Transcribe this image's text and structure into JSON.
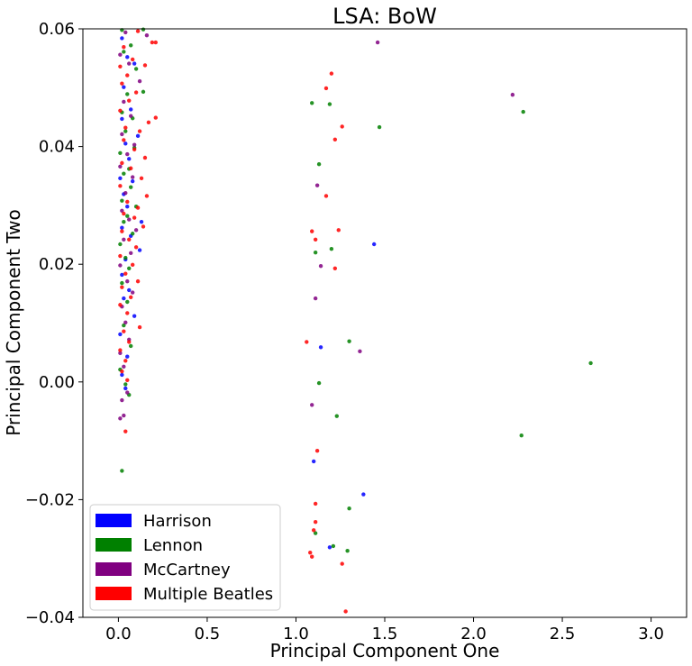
{
  "chart_data": {
    "type": "scatter",
    "title": "LSA: BoW",
    "xlabel": "Principal Component One",
    "ylabel": "Principal Component Two",
    "xlim": [
      -0.2,
      3.2
    ],
    "ylim": [
      -0.04,
      0.06
    ],
    "xticks": [
      0.0,
      0.5,
      1.0,
      1.5,
      2.0,
      2.5,
      3.0
    ],
    "xtick_labels": [
      "0.0",
      "0.5",
      "1.0",
      "1.5",
      "2.0",
      "2.5",
      "3.0"
    ],
    "yticks": [
      -0.04,
      -0.02,
      0.0,
      0.02,
      0.04,
      0.06
    ],
    "ytick_labels": [
      "−0.04",
      "−0.02",
      "0.00",
      "0.02",
      "0.04",
      "0.06"
    ],
    "grid": false,
    "legend_position": "lower-left",
    "series": [
      {
        "name": "Harrison",
        "color": "#0000ff",
        "points": [
          [
            0.02,
            0.0584
          ],
          [
            0.05,
            0.0552
          ],
          [
            0.09,
            0.0541
          ],
          [
            0.03,
            0.0501
          ],
          [
            0.07,
            0.0463
          ],
          [
            0.02,
            0.0447
          ],
          [
            0.11,
            0.0418
          ],
          [
            0.04,
            0.0405
          ],
          [
            0.06,
            0.0379
          ],
          [
            0.01,
            0.0346
          ],
          [
            0.08,
            0.0341
          ],
          [
            0.03,
            0.0319
          ],
          [
            0.05,
            0.0298
          ],
          [
            0.13,
            0.0272
          ],
          [
            0.02,
            0.0262
          ],
          [
            0.07,
            0.0248
          ],
          [
            0.12,
            0.0224
          ],
          [
            0.04,
            0.0208
          ],
          [
            0.02,
            0.0182
          ],
          [
            0.06,
            0.0156
          ],
          [
            0.03,
            0.0142
          ],
          [
            0.09,
            0.0112
          ],
          [
            0.01,
            0.0081
          ],
          [
            0.05,
            0.0043
          ],
          [
            0.02,
            0.0012
          ],
          [
            0.04,
            -0.0011
          ],
          [
            1.44,
            0.0234
          ],
          [
            1.14,
            0.0059
          ],
          [
            1.1,
            -0.0135
          ],
          [
            1.38,
            -0.0191
          ],
          [
            1.19,
            -0.0281
          ]
        ]
      },
      {
        "name": "Lennon",
        "color": "#008000",
        "points": [
          [
            0.02,
            0.0598
          ],
          [
            0.14,
            0.0599
          ],
          [
            0.07,
            0.0572
          ],
          [
            0.03,
            0.0561
          ],
          [
            0.1,
            0.0532
          ],
          [
            0.14,
            0.0493
          ],
          [
            0.05,
            0.0489
          ],
          [
            0.02,
            0.0458
          ],
          [
            0.08,
            0.0448
          ],
          [
            0.04,
            0.0426
          ],
          [
            0.09,
            0.0398
          ],
          [
            0.01,
            0.0389
          ],
          [
            0.06,
            0.0362
          ],
          [
            0.03,
            0.0354
          ],
          [
            0.07,
            0.0331
          ],
          [
            0.02,
            0.0308
          ],
          [
            0.1,
            0.0298
          ],
          [
            0.05,
            0.0282
          ],
          [
            0.03,
            0.0272
          ],
          [
            0.08,
            0.0252
          ],
          [
            0.01,
            0.0234
          ],
          [
            0.04,
            0.0211
          ],
          [
            0.06,
            0.0193
          ],
          [
            0.02,
            0.0168
          ],
          [
            0.05,
            0.0136
          ],
          [
            0.03,
            0.0096
          ],
          [
            0.07,
            0.0061
          ],
          [
            0.01,
            0.0021
          ],
          [
            0.04,
            -0.0004
          ],
          [
            0.06,
            -0.0022
          ],
          [
            0.02,
            -0.0151
          ],
          [
            1.09,
            0.0474
          ],
          [
            1.19,
            0.0472
          ],
          [
            1.47,
            0.0433
          ],
          [
            2.28,
            0.0459
          ],
          [
            1.13,
            0.037
          ],
          [
            1.2,
            0.0226
          ],
          [
            1.11,
            0.022
          ],
          [
            1.3,
            0.0069
          ],
          [
            1.13,
            -0.0002
          ],
          [
            1.23,
            -0.0058
          ],
          [
            2.27,
            -0.0091
          ],
          [
            2.66,
            0.0032
          ],
          [
            1.3,
            -0.0215
          ],
          [
            1.11,
            -0.0257
          ],
          [
            1.21,
            -0.0279
          ],
          [
            1.29,
            -0.0287
          ]
        ]
      },
      {
        "name": "McCartney",
        "color": "#800080",
        "points": [
          [
            0.04,
            0.0594
          ],
          [
            0.16,
            0.0589
          ],
          [
            0.01,
            0.0556
          ],
          [
            0.06,
            0.0541
          ],
          [
            0.12,
            0.0511
          ],
          [
            0.03,
            0.0476
          ],
          [
            0.07,
            0.0452
          ],
          [
            0.02,
            0.0421
          ],
          [
            0.09,
            0.0403
          ],
          [
            0.05,
            0.0387
          ],
          [
            0.01,
            0.0366
          ],
          [
            0.08,
            0.0348
          ],
          [
            0.04,
            0.0321
          ],
          [
            0.02,
            0.0291
          ],
          [
            0.06,
            0.0276
          ],
          [
            0.1,
            0.0258
          ],
          [
            0.03,
            0.0242
          ],
          [
            0.07,
            0.0219
          ],
          [
            0.01,
            0.0198
          ],
          [
            0.05,
            0.0171
          ],
          [
            0.08,
            0.0152
          ],
          [
            0.02,
            0.0128
          ],
          [
            0.04,
            0.0101
          ],
          [
            0.06,
            0.0072
          ],
          [
            0.01,
            0.0049
          ],
          [
            0.03,
            0.0026
          ],
          [
            0.05,
            -0.0018
          ],
          [
            0.02,
            -0.0031
          ],
          [
            0.01,
            -0.0062
          ],
          [
            0.03,
            -0.0057
          ],
          [
            1.46,
            0.0577
          ],
          [
            2.22,
            0.0488
          ],
          [
            1.12,
            0.0334
          ],
          [
            1.14,
            0.0197
          ],
          [
            1.11,
            0.0142
          ],
          [
            1.36,
            0.0052
          ],
          [
            1.09,
            -0.0039
          ]
        ]
      },
      {
        "name": "Multiple Beatles",
        "color": "#ff0000",
        "points": [
          [
            0.11,
            0.0596
          ],
          [
            0.21,
            0.0577
          ],
          [
            0.03,
            0.0569
          ],
          [
            0.08,
            0.0548
          ],
          [
            0.19,
            0.0577
          ],
          [
            0.01,
            0.0536
          ],
          [
            0.05,
            0.0521
          ],
          [
            0.15,
            0.0538
          ],
          [
            0.02,
            0.0507
          ],
          [
            0.1,
            0.0492
          ],
          [
            0.06,
            0.0478
          ],
          [
            0.21,
            0.0449
          ],
          [
            0.01,
            0.0461
          ],
          [
            0.17,
            0.0441
          ],
          [
            0.04,
            0.0432
          ],
          [
            0.12,
            0.0426
          ],
          [
            0.03,
            0.0411
          ],
          [
            0.09,
            0.0395
          ],
          [
            0.15,
            0.0381
          ],
          [
            0.02,
            0.0372
          ],
          [
            0.07,
            0.0363
          ],
          [
            0.13,
            0.0346
          ],
          [
            0.01,
            0.0333
          ],
          [
            0.16,
            0.0316
          ],
          [
            0.05,
            0.0306
          ],
          [
            0.11,
            0.0296
          ],
          [
            0.03,
            0.0286
          ],
          [
            0.09,
            0.0279
          ],
          [
            0.14,
            0.0264
          ],
          [
            0.02,
            0.0256
          ],
          [
            0.06,
            0.0242
          ],
          [
            0.1,
            0.0229
          ],
          [
            0.01,
            0.0214
          ],
          [
            0.08,
            0.0199
          ],
          [
            0.04,
            0.0184
          ],
          [
            0.11,
            0.0171
          ],
          [
            0.02,
            0.0161
          ],
          [
            0.07,
            0.0144
          ],
          [
            0.01,
            0.0131
          ],
          [
            0.05,
            0.0117
          ],
          [
            0.12,
            0.0093
          ],
          [
            0.03,
            0.0086
          ],
          [
            0.06,
            0.0068
          ],
          [
            0.01,
            0.0054
          ],
          [
            0.04,
            0.0036
          ],
          [
            0.02,
            0.0018
          ],
          [
            0.05,
            0.0003
          ],
          [
            0.04,
            -0.0084
          ],
          [
            1.2,
            0.0524
          ],
          [
            1.17,
            0.0499
          ],
          [
            1.26,
            0.0434
          ],
          [
            1.22,
            0.0412
          ],
          [
            1.17,
            0.0316
          ],
          [
            1.09,
            0.0256
          ],
          [
            1.24,
            0.0258
          ],
          [
            1.11,
            0.0242
          ],
          [
            1.22,
            0.0193
          ],
          [
            1.06,
            0.0068
          ],
          [
            1.12,
            -0.0117
          ],
          [
            1.11,
            -0.0207
          ],
          [
            1.11,
            -0.0238
          ],
          [
            1.1,
            -0.0252
          ],
          [
            1.08,
            -0.029
          ],
          [
            1.09,
            -0.0297
          ],
          [
            1.26,
            -0.0309
          ],
          [
            1.28,
            -0.039
          ]
        ]
      }
    ]
  }
}
